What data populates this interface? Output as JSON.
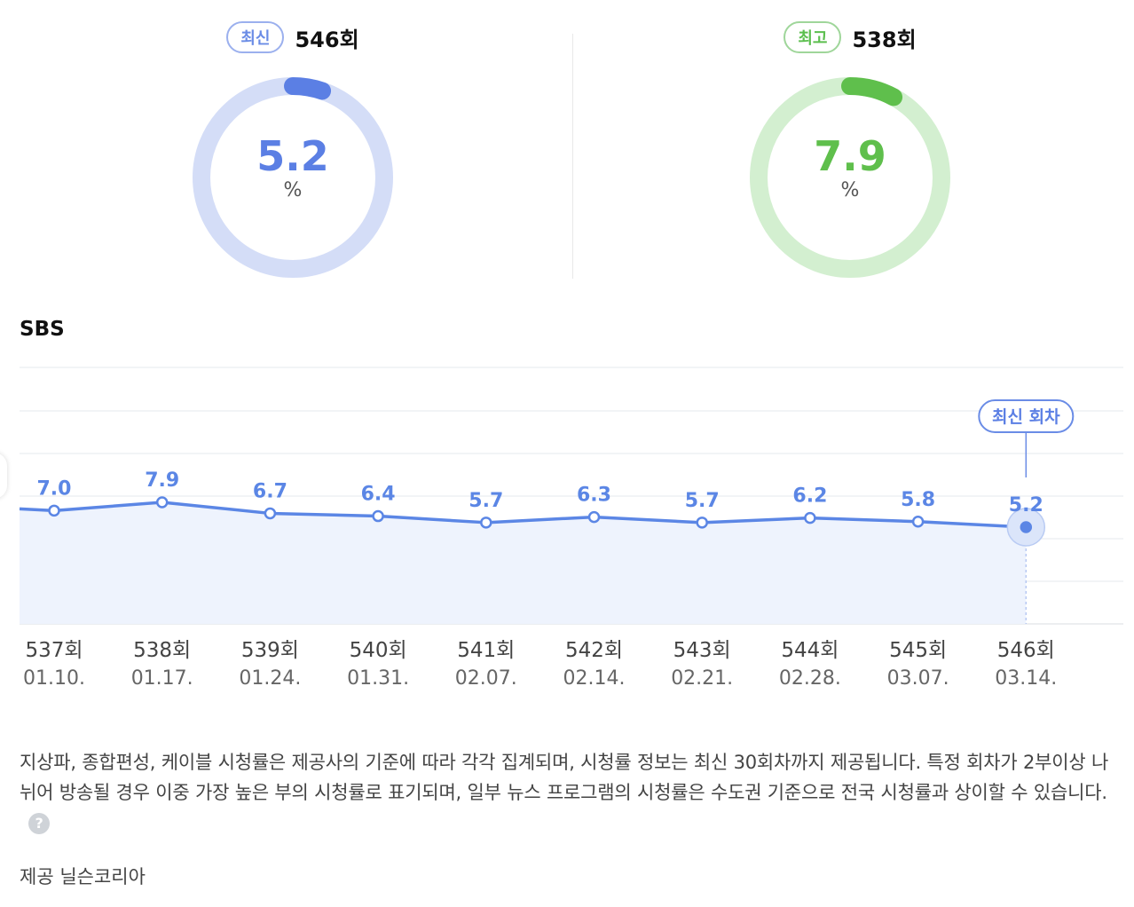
{
  "summary": {
    "latest": {
      "badge": "최신",
      "episode": "546회",
      "value": "5.2",
      "unit": "%",
      "fraction": 0.052,
      "ring_color": "#d4ddf7",
      "arc_color": "#5b7fe4",
      "text_color": "#5b7fe4"
    },
    "best": {
      "badge": "최고",
      "episode": "538회",
      "value": "7.9",
      "unit": "%",
      "fraction": 0.079,
      "ring_color": "#d3efd0",
      "arc_color": "#5fbf4c",
      "text_color": "#5fbf4c"
    }
  },
  "channel": "SBS",
  "chart_data": {
    "type": "line",
    "categories": [
      "537회",
      "538회",
      "539회",
      "540회",
      "541회",
      "542회",
      "543회",
      "544회",
      "545회",
      "546회"
    ],
    "dates": [
      "01.10.",
      "01.17.",
      "01.24.",
      "01.31.",
      "02.07.",
      "02.14.",
      "02.21.",
      "02.28.",
      "03.07.",
      "03.14."
    ],
    "values": [
      7.0,
      7.9,
      6.7,
      6.4,
      5.7,
      6.3,
      5.7,
      6.2,
      5.8,
      5.2
    ],
    "value_labels": [
      "7.0",
      "7.9",
      "6.7",
      "6.4",
      "5.7",
      "6.3",
      "5.7",
      "6.2",
      "5.8",
      "5.2"
    ],
    "latest_tooltip": "최신 회차",
    "line_color": "#5b86e5",
    "fill_color": "#eef3fd",
    "grid": true
  },
  "footnote": {
    "text": "지상파, 종합편성, 케이블 시청률은 제공사의 기준에 따라 각각 집계되며, 시청률 정보는 최신 30회차까지 제공됩니다. 특정 회차가 2부이상 나뉘어 방송될 경우 이중 가장 높은 부의 시청률로 표기되며, 일부 뉴스 프로그램의 시청률은 수도권 기준으로 전국 시청률과 상이할 수 있습니다.",
    "help_icon": "question-circle-icon",
    "help_glyph": "?"
  },
  "source": "제공 닐슨코리아"
}
